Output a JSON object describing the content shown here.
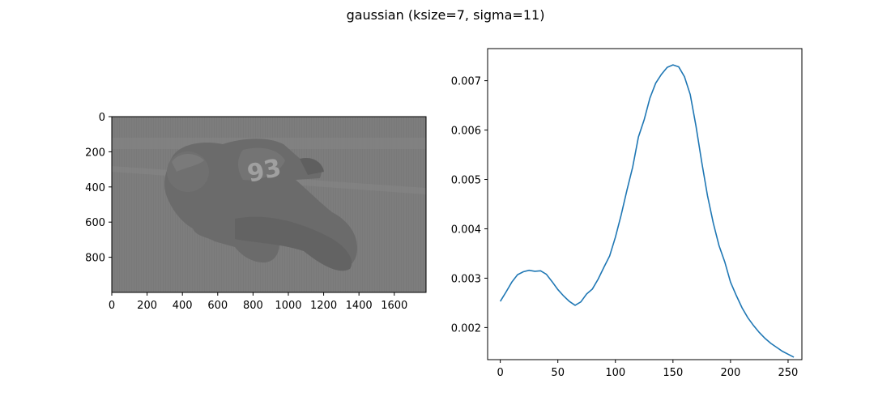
{
  "suptitle": "gaussian (ksize=7, sigma=11)",
  "chart_data": [
    {
      "type": "image",
      "xlim": [
        0,
        1780
      ],
      "ylim": [
        1000,
        0
      ],
      "xticks": [
        0,
        200,
        400,
        600,
        800,
        1000,
        1200,
        1400,
        1600
      ],
      "yticks": [
        0,
        200,
        400,
        600,
        800
      ],
      "image_description": "grayscale low-contrast photo of motorcycle racer #93 leaning into a turn",
      "number_visible": "93",
      "colors": {
        "background": "#7d7d7d",
        "foreground": "#6a6a6a"
      }
    },
    {
      "type": "line",
      "xlim": [
        -11,
        262
      ],
      "ylim": [
        0.00135,
        0.00765
      ],
      "xticks": [
        0,
        50,
        100,
        150,
        200,
        250
      ],
      "yticks": [
        0.002,
        0.003,
        0.004,
        0.005,
        0.006,
        0.007
      ],
      "ytick_labels": [
        "0.002",
        "0.003",
        "0.004",
        "0.005",
        "0.006",
        "0.007"
      ],
      "series": [
        {
          "color": "#1f77b4",
          "x": [
            0,
            5,
            10,
            15,
            20,
            25,
            30,
            35,
            40,
            45,
            50,
            55,
            60,
            65,
            70,
            75,
            80,
            85,
            90,
            95,
            100,
            105,
            110,
            115,
            120,
            125,
            130,
            135,
            140,
            145,
            150,
            155,
            160,
            165,
            170,
            175,
            180,
            185,
            190,
            195,
            200,
            205,
            210,
            215,
            220,
            225,
            230,
            235,
            240,
            245,
            250,
            255
          ],
          "y": [
            0.00253,
            0.00272,
            0.00292,
            0.00307,
            0.00313,
            0.00316,
            0.00314,
            0.00315,
            0.00308,
            0.00293,
            0.00277,
            0.00264,
            0.00253,
            0.00245,
            0.00252,
            0.00268,
            0.00278,
            0.00298,
            0.00322,
            0.00345,
            0.00383,
            0.00428,
            0.00478,
            0.00525,
            0.00586,
            0.00621,
            0.00665,
            0.00695,
            0.00713,
            0.00727,
            0.00732,
            0.00728,
            0.00708,
            0.00672,
            0.00608,
            0.00535,
            0.00467,
            0.00412,
            0.00366,
            0.00333,
            0.00292,
            0.00265,
            0.0024,
            0.0022,
            0.00204,
            0.0019,
            0.00178,
            0.00168,
            0.0016,
            0.00152,
            0.00146,
            0.0014
          ]
        }
      ]
    }
  ]
}
